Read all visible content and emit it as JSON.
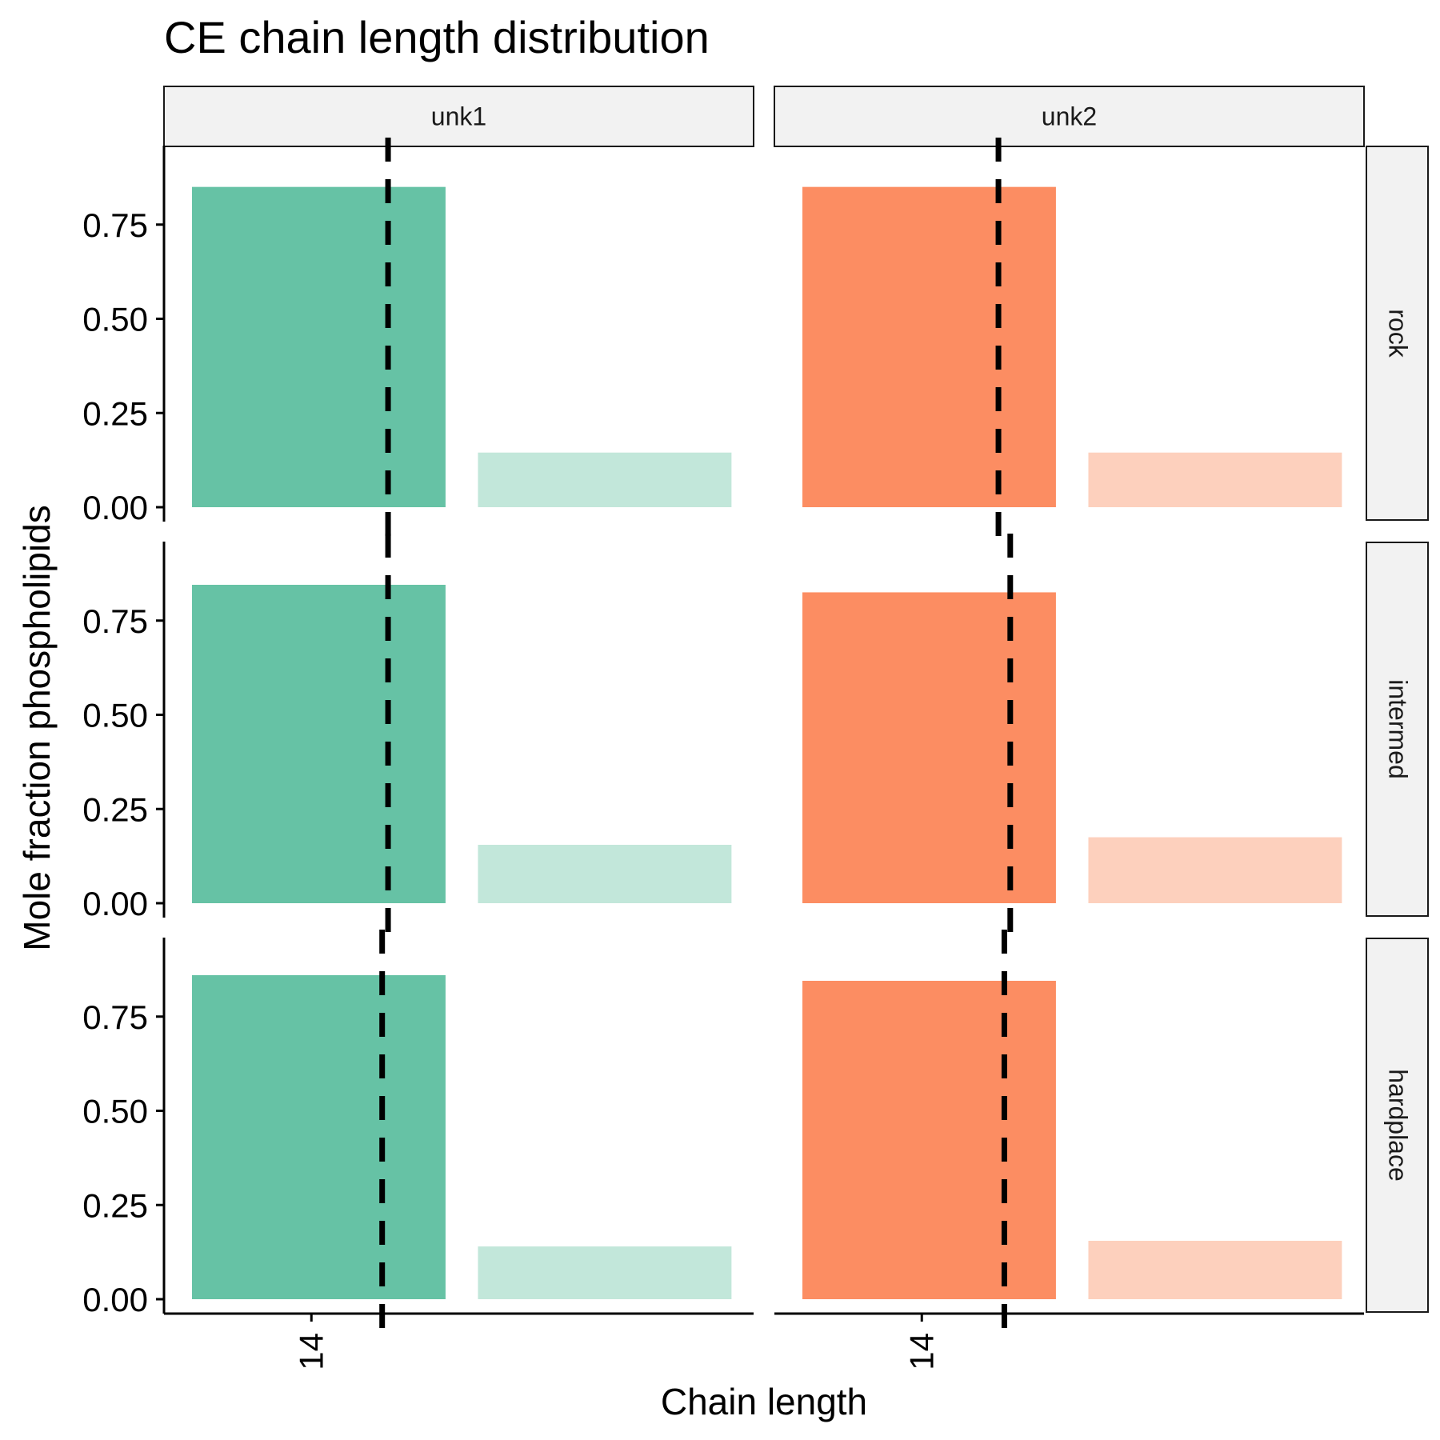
{
  "chart_data": {
    "type": "bar",
    "title": "CE chain length distribution",
    "xlabel": "Chain length",
    "ylabel": "Mole fraction phospholipids",
    "ylim": [
      0,
      0.9
    ],
    "y_ticks": [
      "0.00",
      "0.25",
      "0.50",
      "0.75"
    ],
    "x_tick_labels": [
      "14"
    ],
    "facet_columns": [
      "unk1",
      "unk2"
    ],
    "facet_rows": [
      "rock",
      "intermed",
      "hardplace"
    ],
    "colors": {
      "unk1": {
        "main": "#66c2a5",
        "light": "#c2e7da"
      },
      "unk2": {
        "main": "#fc8d62",
        "light": "#fdd0bd"
      }
    },
    "panels": [
      {
        "column": "unk1",
        "row": "rock",
        "values": [
          0.85,
          0.145
        ],
        "mean_chain_length_position": 0.38
      },
      {
        "column": "unk2",
        "row": "rock",
        "values": [
          0.85,
          0.145
        ],
        "mean_chain_length_position": 0.38
      },
      {
        "column": "unk1",
        "row": "intermed",
        "values": [
          0.845,
          0.155
        ],
        "mean_chain_length_position": 0.38
      },
      {
        "column": "unk2",
        "row": "intermed",
        "values": [
          0.825,
          0.175
        ],
        "mean_chain_length_position": 0.4
      },
      {
        "column": "unk1",
        "row": "hardplace",
        "values": [
          0.86,
          0.14
        ],
        "mean_chain_length_position": 0.37
      },
      {
        "column": "unk2",
        "row": "hardplace",
        "values": [
          0.845,
          0.155
        ],
        "mean_chain_length_position": 0.39
      }
    ],
    "reference_line_style": "dashed",
    "grid": false
  }
}
